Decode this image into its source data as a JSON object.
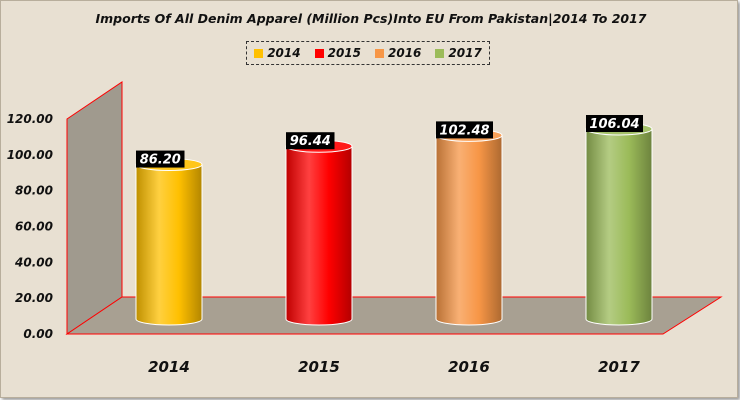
{
  "chart_data": {
    "type": "bar",
    "title": "Imports Of All Denim Apparel (Million Pcs)Into EU From Pakistan|2014 To 2017",
    "categories": [
      "2014",
      "2015",
      "2016",
      "2017"
    ],
    "series": [
      {
        "name": "2014",
        "values": [
          86.2,
          null,
          null,
          null
        ]
      },
      {
        "name": "2015",
        "values": [
          null,
          96.44,
          null,
          null
        ]
      },
      {
        "name": "2016",
        "values": [
          null,
          null,
          102.48,
          null
        ]
      },
      {
        "name": "2017",
        "values": [
          null,
          null,
          null,
          106.04
        ]
      }
    ],
    "values": [
      86.2,
      96.44,
      102.48,
      106.04
    ],
    "data_labels": [
      "86.20",
      "96.44",
      "102.48",
      "106.04"
    ],
    "y_ticks": [
      "0.00",
      "20.00",
      "40.00",
      "60.00",
      "80.00",
      "100.00",
      "120.00"
    ],
    "ylim": [
      0,
      120
    ],
    "xlabel": "",
    "ylabel": "",
    "grid": false,
    "legend_position": "top",
    "colors": {
      "2014": "#ffc000",
      "2015": "#ff0000",
      "2016": "#f79646",
      "2017": "#9bbb59",
      "axis_line": "#ff0000",
      "floor": "#a8a092",
      "label_box": "#000000"
    }
  }
}
